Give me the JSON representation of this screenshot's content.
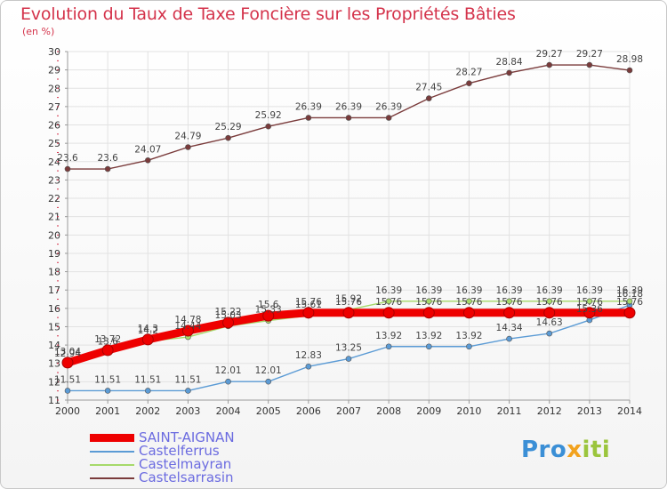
{
  "header": {
    "title": "Evolution du Taux de Taxe Foncière sur les Propriétés Bâties",
    "unit": "(en %)"
  },
  "brand": {
    "parts": [
      "Pro",
      "x",
      "iti"
    ],
    "colors": [
      "#3b8fd6",
      "#f2a21e",
      "#9bc53d"
    ]
  },
  "chart_data": {
    "type": "line",
    "title": "Evolution du Taux de Taxe Foncière sur les Propriétés Bâties",
    "ylabel": "(en %)",
    "xlabel": "",
    "x": [
      "2000",
      "2001",
      "2002",
      "2003",
      "2004",
      "2005",
      "2006",
      "2007",
      "2008",
      "2009",
      "2010",
      "2011",
      "2012",
      "2013",
      "2014"
    ],
    "ylim": [
      11,
      30
    ],
    "yticks": [
      11,
      12,
      13,
      14,
      15,
      16,
      17,
      18,
      19,
      20,
      21,
      22,
      23,
      24,
      25,
      26,
      27,
      28,
      29,
      30
    ],
    "grid": true,
    "legend_position": "bottom-left",
    "series": [
      {
        "name": "SAINT-AIGNAN",
        "color": "#ee0000",
        "style": "thick",
        "values": [
          13.04,
          13.72,
          14.3,
          14.78,
          15.22,
          15.6,
          15.76,
          15.76,
          15.76,
          15.76,
          15.76,
          15.76,
          15.76,
          15.76,
          15.76
        ],
        "labels": [
          "13.04",
          "13.72",
          "14.3",
          "14.78",
          "15.22",
          "15.6",
          "15.76",
          "15.76",
          "15.76",
          "15.76",
          "15.76",
          "15.76",
          "15.76",
          "15.76",
          "15.76"
        ]
      },
      {
        "name": "Castelferrus",
        "color": "#5b9bd5",
        "style": "thin",
        "values": [
          11.51,
          11.51,
          11.51,
          11.51,
          12.01,
          12.01,
          12.83,
          13.25,
          13.92,
          13.92,
          13.92,
          14.34,
          14.63,
          15.36,
          16.18
        ],
        "labels": [
          "11.51",
          "11.51",
          "11.51",
          "11.51",
          "12.01",
          "12.01",
          "12.83",
          "13.25",
          "13.92",
          "13.92",
          "13.92",
          "14.34",
          "14.63",
          "15.36",
          "16.18"
        ]
      },
      {
        "name": "Castelmayran",
        "color": "#a6d96a",
        "style": "thin",
        "values": [
          12.94,
          13.6,
          14.2,
          14.44,
          15.03,
          15.33,
          15.61,
          15.92,
          16.39,
          16.39,
          16.39,
          16.39,
          16.39,
          16.39,
          16.39
        ],
        "labels": [
          "12.94",
          "13.6",
          "14.2",
          "14.44",
          "15.03",
          "15.33",
          "15.61",
          "15.92",
          "16.39",
          "16.39",
          "16.39",
          "16.39",
          "16.39",
          "16.39",
          "16.39"
        ]
      },
      {
        "name": "Castelsarrasin",
        "color": "#7a3b3b",
        "style": "thin",
        "values": [
          23.6,
          23.6,
          24.07,
          24.79,
          25.29,
          25.92,
          26.39,
          26.39,
          26.39,
          27.45,
          28.27,
          28.84,
          29.27,
          29.27,
          28.98
        ],
        "labels": [
          "23.6",
          "23.6",
          "24.07",
          "24.79",
          "25.29",
          "25.92",
          "26.39",
          "26.39",
          "26.39",
          "27.45",
          "28.27",
          "28.84",
          "29.27",
          "29.27",
          "28.98"
        ]
      }
    ]
  }
}
